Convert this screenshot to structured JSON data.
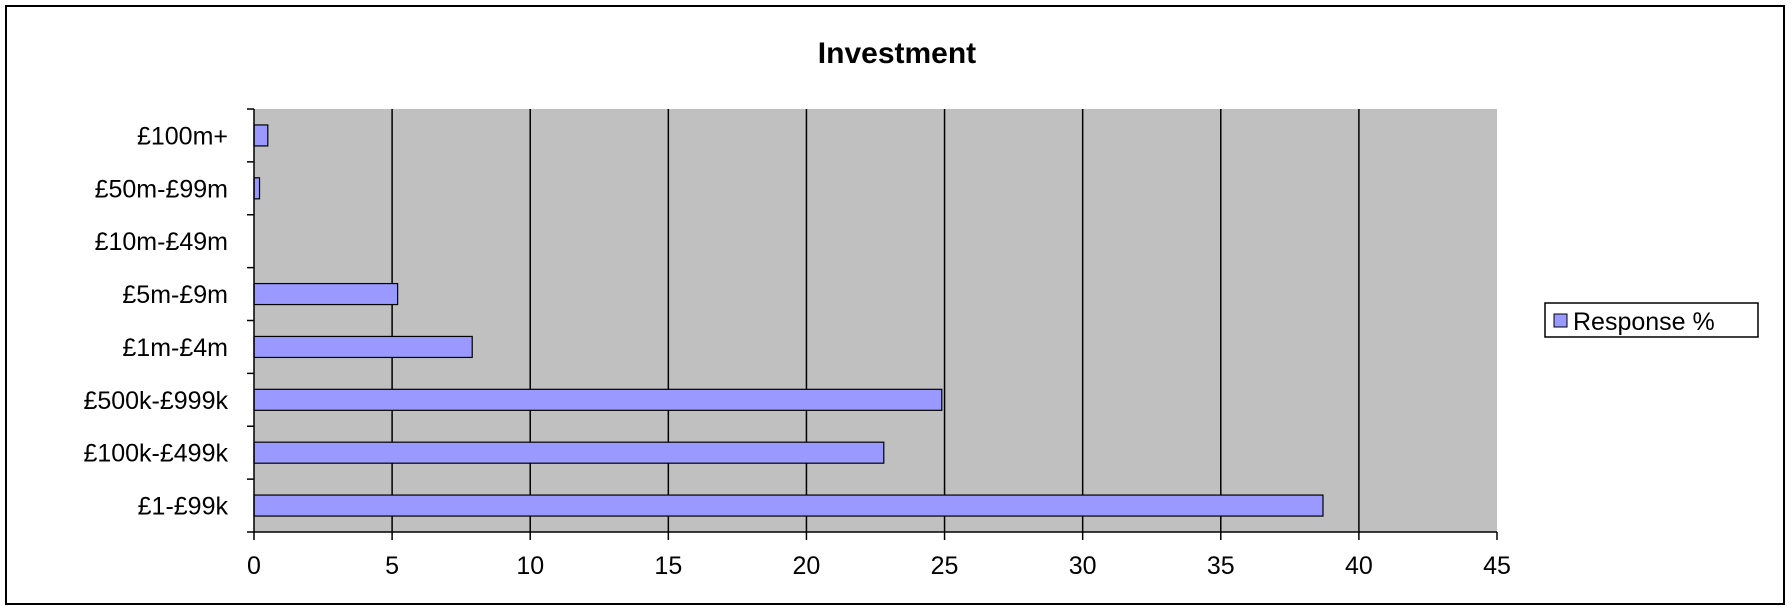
{
  "chart_data": {
    "type": "bar",
    "orientation": "horizontal",
    "title": "Investment",
    "xlabel": "",
    "ylabel": "",
    "categories": [
      "£100m+",
      "£50m-£99m",
      "£10m-£49m",
      "£5m-£9m",
      "£1m-£4m",
      "£500k-£999k",
      "£100k-£499k",
      "£1-£99k"
    ],
    "series": [
      {
        "name": "Response %",
        "values": [
          0.5,
          0.2,
          0,
          5.2,
          7.9,
          24.9,
          22.8,
          38.7
        ],
        "color": "#9999ff"
      }
    ],
    "xlim": [
      0,
      45
    ],
    "xticks": [
      0,
      5,
      10,
      15,
      20,
      25,
      30,
      35,
      40,
      45
    ],
    "grid": "vertical",
    "legend": "right",
    "plot_background": "#c0c0c0"
  }
}
